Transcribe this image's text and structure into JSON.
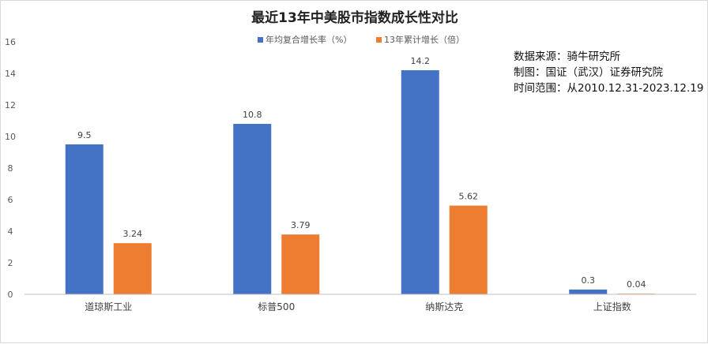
{
  "chart_data": {
    "type": "bar",
    "title": "最近13年中美股市指数成长性对比",
    "categories": [
      "道琼斯工业",
      "标普500",
      "纳斯达克",
      "上证指数"
    ],
    "series": [
      {
        "name": "年均复合增长率（%）",
        "color": "#4472C4",
        "values": [
          9.5,
          10.8,
          14.2,
          0.3
        ],
        "labels": [
          "9.5",
          "10.8",
          "14.2",
          "0.3"
        ]
      },
      {
        "name": "13年累计增长（倍）",
        "color": "#ED7D31",
        "values": [
          3.24,
          3.79,
          5.62,
          0.04
        ],
        "labels": [
          "3.24",
          "3.79",
          "5.62",
          "0.04"
        ]
      }
    ],
    "ylim": [
      0,
      16
    ],
    "yticks": [
      "0",
      "2",
      "4",
      "6",
      "8",
      "10",
      "12",
      "14",
      "16"
    ],
    "grid": false,
    "legend": "top-center",
    "annotations": [
      "数据来源：骑牛研究所",
      "制图：国证（武汉）证券研究院",
      "时间范围：从2010.12.31-2023.12.19"
    ]
  }
}
